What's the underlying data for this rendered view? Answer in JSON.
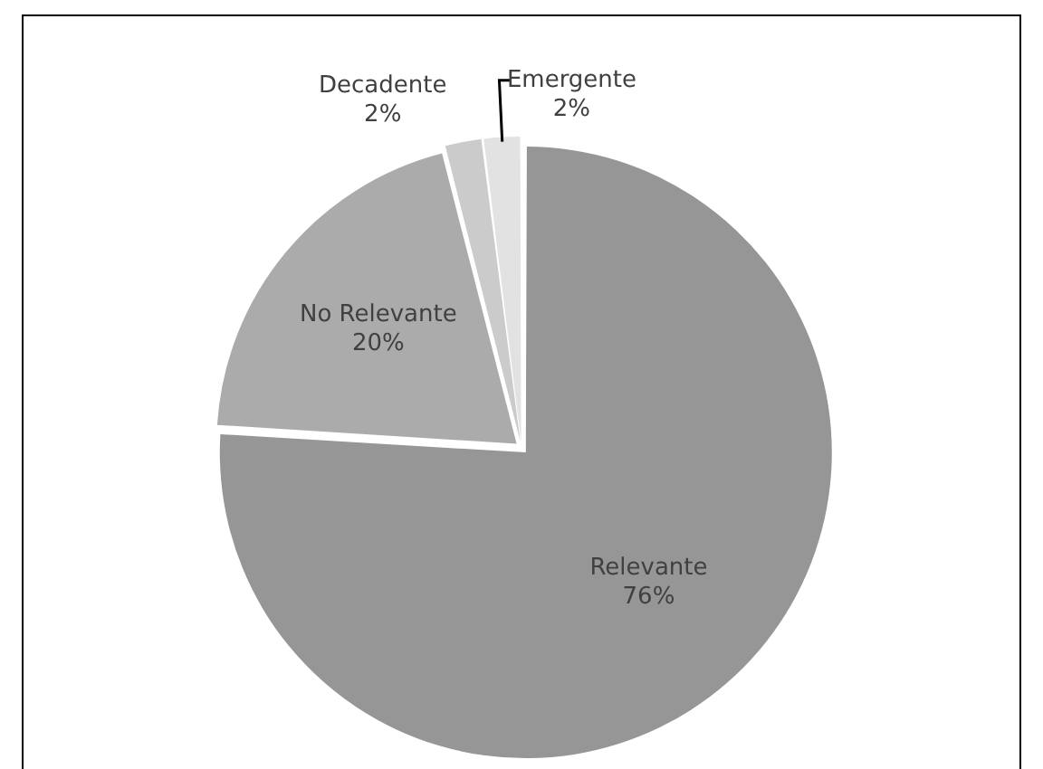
{
  "chart_data": {
    "type": "pie",
    "categories": [
      "Relevante",
      "No Relevante",
      "Decadente",
      "Emergente"
    ],
    "values": [
      76,
      20,
      2,
      2
    ],
    "colors": [
      "#969696",
      "#ababab",
      "#cbcbcb",
      "#e2e2e2"
    ],
    "value_labels": [
      "76%",
      "20%",
      "2%",
      "2%"
    ],
    "legend": false
  }
}
